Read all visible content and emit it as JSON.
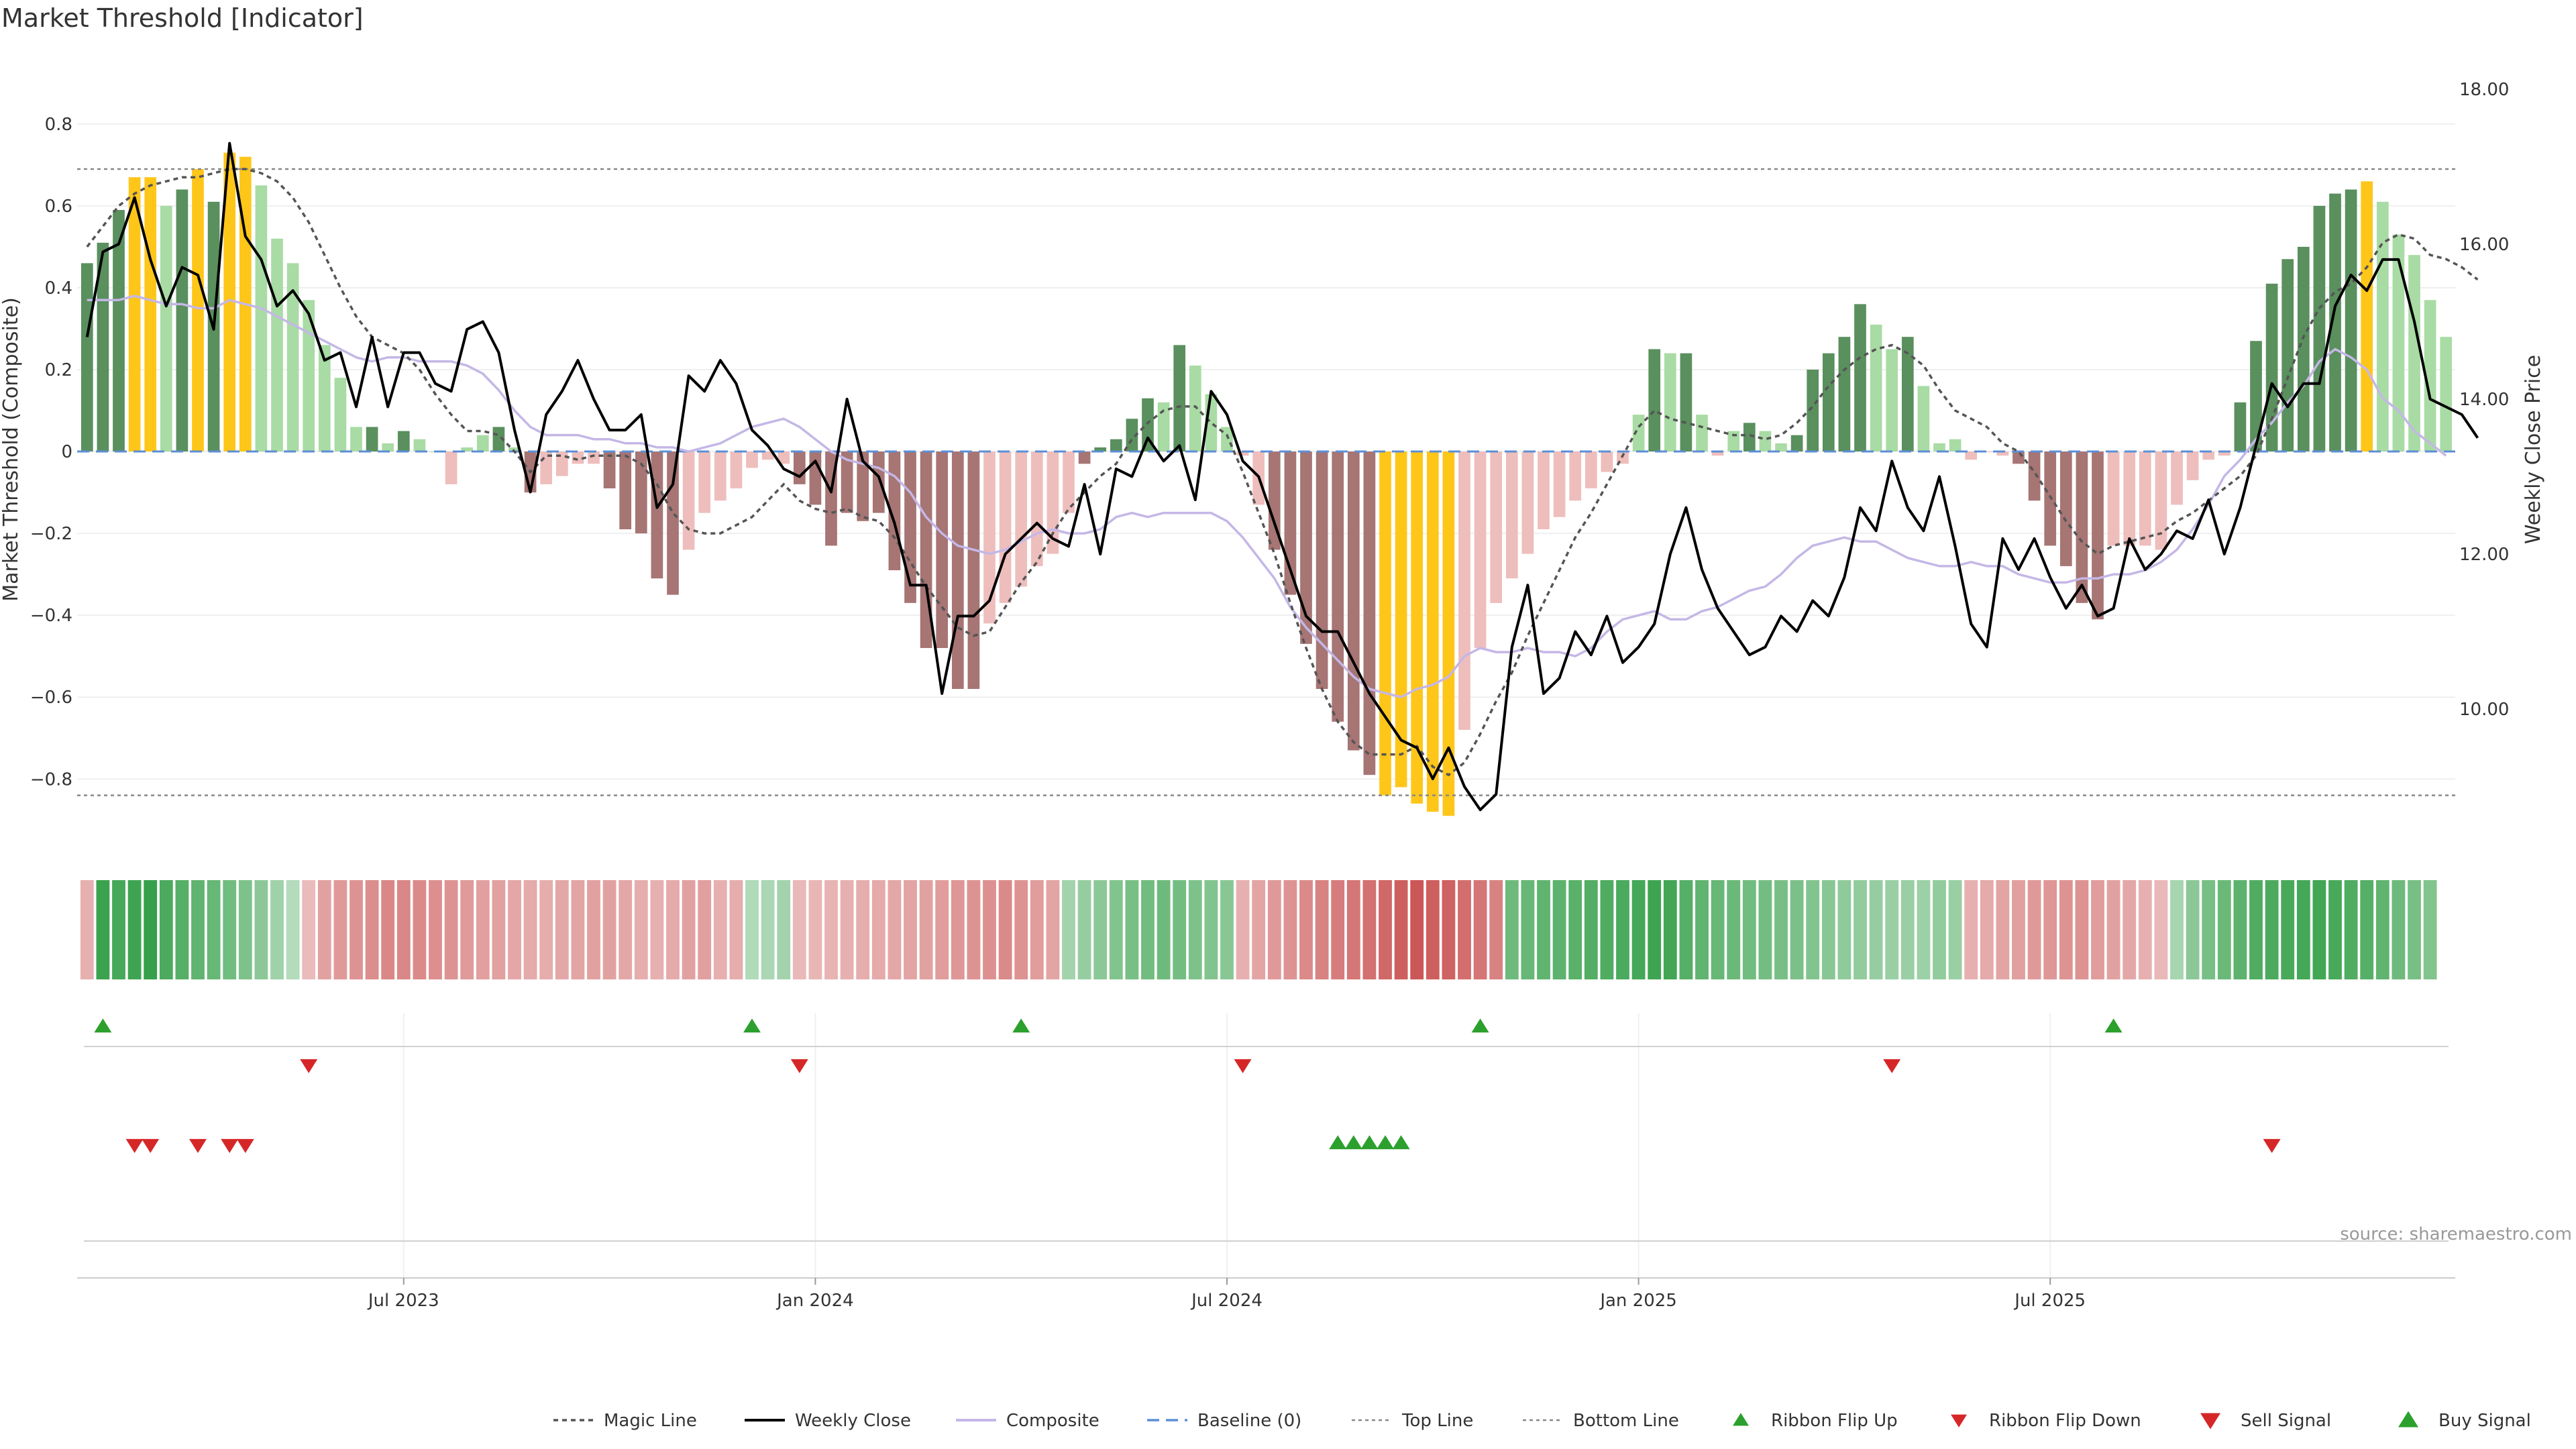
{
  "title": "Market Threshold [Indicator]",
  "source": "source: sharemaestro.com",
  "chart_data": {
    "type": "bar",
    "y_left": {
      "label": "Market Threshold (Composite)",
      "range": [
        -0.97,
        0.98
      ],
      "ticks": [
        0.8,
        0.6,
        0.4,
        0.2,
        0,
        -0.2,
        -0.4,
        -0.6,
        -0.8
      ]
    },
    "y_right": {
      "label": "Weekly Close Price",
      "range": [
        8.2,
        18.5
      ],
      "ticks": [
        "18.00",
        "16.00",
        "14.00",
        "12.00",
        "10.00"
      ]
    },
    "x_labels": [
      "Jul 2023",
      "Jan 2024",
      "Jul 2024",
      "Jan 2025",
      "Jul 2025"
    ],
    "x_label_week_index": [
      20,
      46,
      72,
      98,
      124
    ],
    "top_line": 0.69,
    "bottom_line": -0.84,
    "grid": true,
    "colors": {
      "strong_up": "#5a8f5e",
      "weak_up": "#a9dba4",
      "strong_down": "#a67574",
      "weak_down": "#eebebc",
      "extreme": "#ffc61a",
      "magic": "#555555",
      "close": "#000000",
      "composite": "#c4b7e6",
      "baseline": "#5b8fd6",
      "threshold": "#888888",
      "signal_up": "#2ca02c",
      "signal_down": "#d62728"
    },
    "composite_bars": {
      "values": [
        0.46,
        0.51,
        0.59,
        0.67,
        0.67,
        0.6,
        0.64,
        0.69,
        0.61,
        0.73,
        0.72,
        0.65,
        0.52,
        0.46,
        0.37,
        0.26,
        0.18,
        0.06,
        0.06,
        0.02,
        0.05,
        0.03,
        0.0,
        -0.08,
        0.01,
        0.04,
        0.06,
        0.01,
        -0.1,
        -0.08,
        -0.06,
        -0.03,
        -0.03,
        -0.09,
        -0.19,
        -0.2,
        -0.31,
        -0.35,
        -0.24,
        -0.15,
        -0.12,
        -0.09,
        -0.04,
        -0.02,
        -0.03,
        -0.08,
        -0.13,
        -0.23,
        -0.15,
        -0.17,
        -0.15,
        -0.29,
        -0.37,
        -0.48,
        -0.48,
        -0.58,
        -0.58,
        -0.42,
        -0.37,
        -0.33,
        -0.28,
        -0.25,
        -0.15,
        -0.03,
        0.01,
        0.03,
        0.08,
        0.13,
        0.12,
        0.26,
        0.21,
        0.14,
        0.06,
        -0.01,
        -0.13,
        -0.24,
        -0.35,
        -0.47,
        -0.58,
        -0.66,
        -0.73,
        -0.79,
        -0.84,
        -0.82,
        -0.86,
        -0.88,
        -0.89,
        -0.68,
        -0.48,
        -0.37,
        -0.31,
        -0.25,
        -0.19,
        -0.16,
        -0.12,
        -0.09,
        -0.05,
        -0.03,
        0.09,
        0.25,
        0.24,
        0.24,
        0.09,
        -0.01,
        0.05,
        0.07,
        0.05,
        0.02,
        0.04,
        0.2,
        0.24,
        0.28,
        0.36,
        0.31,
        0.25,
        0.28,
        0.16,
        0.02,
        0.03,
        -0.02,
        0.0,
        -0.01,
        -0.03,
        -0.12,
        -0.23,
        -0.28,
        -0.37,
        -0.41,
        -0.23,
        -0.23,
        -0.23,
        -0.24,
        -0.13,
        -0.07,
        -0.02,
        -0.01,
        0.12,
        0.27,
        0.41,
        0.47,
        0.5,
        0.6,
        0.63,
        0.64,
        0.66,
        0.61,
        0.53,
        0.48,
        0.37,
        0.28
      ],
      "categories": [
        "strong_up",
        "strong_up",
        "strong_up",
        "extreme",
        "extreme",
        "weak_up",
        "strong_up",
        "extreme",
        "strong_up",
        "extreme",
        "extreme",
        "weak_up",
        "weak_up",
        "weak_up",
        "weak_up",
        "weak_up",
        "weak_up",
        "weak_up",
        "strong_up",
        "weak_up",
        "strong_up",
        "weak_up",
        "weak_up",
        "weak_down",
        "weak_up",
        "weak_up",
        "strong_up",
        "weak_up",
        "strong_down",
        "weak_down",
        "weak_down",
        "weak_down",
        "weak_down",
        "strong_down",
        "strong_down",
        "strong_down",
        "strong_down",
        "strong_down",
        "weak_down",
        "weak_down",
        "weak_down",
        "weak_down",
        "weak_down",
        "weak_down",
        "weak_down",
        "strong_down",
        "strong_down",
        "strong_down",
        "strong_down",
        "strong_down",
        "strong_down",
        "strong_down",
        "strong_down",
        "strong_down",
        "strong_down",
        "strong_down",
        "strong_down",
        "weak_down",
        "weak_down",
        "weak_down",
        "weak_down",
        "weak_down",
        "weak_down",
        "strong_down",
        "strong_up",
        "strong_up",
        "strong_up",
        "strong_up",
        "weak_up",
        "strong_up",
        "weak_up",
        "weak_up",
        "weak_up",
        "weak_down",
        "weak_down",
        "strong_down",
        "strong_down",
        "strong_down",
        "strong_down",
        "strong_down",
        "strong_down",
        "strong_down",
        "extreme",
        "extreme",
        "extreme",
        "extreme",
        "extreme",
        "weak_down",
        "weak_down",
        "weak_down",
        "weak_down",
        "weak_down",
        "weak_down",
        "weak_down",
        "weak_down",
        "weak_down",
        "weak_down",
        "weak_down",
        "weak_up",
        "strong_up",
        "weak_up",
        "strong_up",
        "weak_up",
        "weak_down",
        "weak_up",
        "strong_up",
        "weak_up",
        "weak_up",
        "strong_up",
        "strong_up",
        "strong_up",
        "strong_up",
        "strong_up",
        "weak_up",
        "weak_up",
        "strong_up",
        "weak_up",
        "weak_up",
        "weak_up",
        "weak_down",
        "weak_down",
        "weak_down",
        "strong_down",
        "strong_down",
        "strong_down",
        "strong_down",
        "strong_down",
        "strong_down",
        "weak_down",
        "weak_down",
        "weak_down",
        "weak_down",
        "weak_down",
        "weak_down",
        "weak_down",
        "weak_down",
        "strong_up",
        "strong_up",
        "strong_up",
        "strong_up",
        "strong_up",
        "strong_up",
        "strong_up",
        "strong_up",
        "extreme",
        "weak_up",
        "weak_up",
        "weak_up",
        "weak_up",
        "weak_up"
      ]
    },
    "weekly_close": [
      14.8,
      15.9,
      16.0,
      16.6,
      15.8,
      15.2,
      15.7,
      15.6,
      14.9,
      17.3,
      16.1,
      15.8,
      15.2,
      15.4,
      15.1,
      14.5,
      14.6,
      13.9,
      14.8,
      13.9,
      14.6,
      14.6,
      14.2,
      14.1,
      14.9,
      15.0,
      14.6,
      13.6,
      12.8,
      13.8,
      14.1,
      14.5,
      14.0,
      13.6,
      13.6,
      13.8,
      12.6,
      12.9,
      14.3,
      14.1,
      14.5,
      14.2,
      13.6,
      13.4,
      13.1,
      13.0,
      13.2,
      12.8,
      14.0,
      13.2,
      13.0,
      12.4,
      11.6,
      11.6,
      10.2,
      11.2,
      11.2,
      11.4,
      12.0,
      12.2,
      12.4,
      12.2,
      12.1,
      12.9,
      12.0,
      13.1,
      13.0,
      13.5,
      13.2,
      13.4,
      12.7,
      14.1,
      13.8,
      13.2,
      13.0,
      12.4,
      11.8,
      11.2,
      11.0,
      11.0,
      10.6,
      10.2,
      9.9,
      9.6,
      9.5,
      9.1,
      9.5,
      9.0,
      8.7,
      8.9,
      10.8,
      11.6,
      10.2,
      10.4,
      11.0,
      10.7,
      11.2,
      10.6,
      10.8,
      11.1,
      12.0,
      12.6,
      11.8,
      11.3,
      11.0,
      10.7,
      10.8,
      11.2,
      11.0,
      11.4,
      11.2,
      11.7,
      12.6,
      12.3,
      13.2,
      12.6,
      12.3,
      13.0,
      12.1,
      11.1,
      10.8,
      12.2,
      11.8,
      12.2,
      11.7,
      11.3,
      11.6,
      11.2,
      11.3,
      12.2,
      11.8,
      12.0,
      12.3,
      12.2,
      12.7,
      12.0,
      12.6,
      13.4,
      14.2,
      13.9,
      14.2,
      14.2,
      15.2,
      15.6,
      15.4,
      15.8,
      15.8,
      15.0,
      14.0,
      13.9,
      13.8,
      13.5
    ],
    "magic_line": [
      0.5,
      0.55,
      0.6,
      0.63,
      0.65,
      0.66,
      0.67,
      0.67,
      0.68,
      0.69,
      0.69,
      0.68,
      0.66,
      0.62,
      0.56,
      0.48,
      0.4,
      0.33,
      0.28,
      0.26,
      0.24,
      0.2,
      0.14,
      0.09,
      0.05,
      0.05,
      0.04,
      0.0,
      -0.05,
      -0.01,
      -0.01,
      -0.02,
      -0.01,
      -0.01,
      -0.01,
      -0.03,
      -0.08,
      -0.15,
      -0.19,
      -0.2,
      -0.2,
      -0.18,
      -0.16,
      -0.12,
      -0.08,
      -0.12,
      -0.14,
      -0.15,
      -0.14,
      -0.16,
      -0.17,
      -0.21,
      -0.27,
      -0.33,
      -0.38,
      -0.43,
      -0.45,
      -0.44,
      -0.38,
      -0.32,
      -0.27,
      -0.2,
      -0.14,
      -0.1,
      -0.06,
      -0.03,
      0.03,
      0.07,
      0.1,
      0.11,
      0.11,
      0.07,
      0.04,
      -0.05,
      -0.15,
      -0.25,
      -0.37,
      -0.48,
      -0.58,
      -0.66,
      -0.71,
      -0.74,
      -0.74,
      -0.74,
      -0.72,
      -0.77,
      -0.79,
      -0.76,
      -0.69,
      -0.61,
      -0.54,
      -0.45,
      -0.37,
      -0.29,
      -0.21,
      -0.15,
      -0.08,
      -0.01,
      0.06,
      0.1,
      0.08,
      0.07,
      0.06,
      0.05,
      0.04,
      0.04,
      0.03,
      0.04,
      0.07,
      0.11,
      0.16,
      0.2,
      0.23,
      0.25,
      0.26,
      0.24,
      0.21,
      0.15,
      0.1,
      0.08,
      0.06,
      0.02,
      0.0,
      -0.05,
      -0.11,
      -0.17,
      -0.22,
      -0.25,
      -0.23,
      -0.22,
      -0.21,
      -0.2,
      -0.17,
      -0.15,
      -0.12,
      -0.09,
      -0.06,
      -0.01,
      0.08,
      0.18,
      0.28,
      0.35,
      0.39,
      0.41,
      0.45,
      0.51,
      0.53,
      0.52,
      0.48,
      0.47,
      0.45,
      0.42
    ],
    "composite_line": [
      0.37,
      0.37,
      0.37,
      0.38,
      0.37,
      0.36,
      0.36,
      0.35,
      0.35,
      0.37,
      0.36,
      0.35,
      0.33,
      0.31,
      0.29,
      0.27,
      0.25,
      0.23,
      0.22,
      0.23,
      0.23,
      0.22,
      0.22,
      0.22,
      0.21,
      0.19,
      0.15,
      0.1,
      0.06,
      0.04,
      0.04,
      0.04,
      0.03,
      0.03,
      0.02,
      0.02,
      0.01,
      0.01,
      0.0,
      0.01,
      0.02,
      0.04,
      0.06,
      0.07,
      0.08,
      0.06,
      0.03,
      0.0,
      -0.02,
      -0.03,
      -0.04,
      -0.06,
      -0.1,
      -0.16,
      -0.2,
      -0.23,
      -0.24,
      -0.25,
      -0.24,
      -0.22,
      -0.2,
      -0.19,
      -0.2,
      -0.2,
      -0.19,
      -0.16,
      -0.15,
      -0.16,
      -0.15,
      -0.15,
      -0.15,
      -0.15,
      -0.17,
      -0.21,
      -0.26,
      -0.31,
      -0.38,
      -0.43,
      -0.47,
      -0.51,
      -0.55,
      -0.58,
      -0.59,
      -0.6,
      -0.58,
      -0.57,
      -0.55,
      -0.5,
      -0.48,
      -0.49,
      -0.49,
      -0.48,
      -0.49,
      -0.49,
      -0.5,
      -0.48,
      -0.44,
      -0.41,
      -0.4,
      -0.39,
      -0.41,
      -0.41,
      -0.39,
      -0.38,
      -0.36,
      -0.34,
      -0.33,
      -0.3,
      -0.26,
      -0.23,
      -0.22,
      -0.21,
      -0.22,
      -0.22,
      -0.24,
      -0.26,
      -0.27,
      -0.28,
      -0.28,
      -0.27,
      -0.28,
      -0.28,
      -0.3,
      -0.31,
      -0.32,
      -0.32,
      -0.31,
      -0.31,
      -0.3,
      -0.3,
      -0.29,
      -0.27,
      -0.24,
      -0.19,
      -0.13,
      -0.06,
      -0.02,
      0.03,
      0.07,
      0.12,
      0.16,
      0.22,
      0.25,
      0.23,
      0.2,
      0.13,
      0.1,
      0.05,
      0.02,
      -0.01
    ],
    "ribbon": {
      "values": [
        -0.3,
        0.92,
        0.85,
        0.9,
        0.95,
        0.82,
        0.76,
        0.7,
        0.66,
        0.6,
        0.52,
        0.44,
        0.32,
        0.2,
        -0.22,
        -0.4,
        -0.46,
        -0.5,
        -0.54,
        -0.58,
        -0.58,
        -0.56,
        -0.53,
        -0.5,
        -0.45,
        -0.42,
        -0.4,
        -0.37,
        -0.34,
        -0.32,
        -0.36,
        -0.38,
        -0.4,
        -0.4,
        -0.36,
        -0.32,
        -0.3,
        -0.34,
        -0.4,
        -0.42,
        -0.3,
        -0.32,
        0.22,
        0.25,
        0.3,
        -0.24,
        -0.26,
        -0.28,
        -0.3,
        -0.32,
        -0.34,
        -0.36,
        -0.38,
        -0.4,
        -0.44,
        -0.48,
        -0.5,
        -0.52,
        -0.56,
        -0.5,
        -0.44,
        -0.38,
        0.3,
        0.38,
        0.44,
        0.5,
        0.56,
        0.6,
        0.62,
        0.58,
        0.52,
        0.5,
        0.46,
        -0.3,
        -0.38,
        -0.46,
        -0.5,
        -0.56,
        -0.62,
        -0.66,
        -0.7,
        -0.74,
        -0.8,
        -0.86,
        -0.92,
        -0.86,
        -0.84,
        -0.76,
        -0.7,
        -0.62,
        0.62,
        0.66,
        0.7,
        0.72,
        0.74,
        0.78,
        0.8,
        0.82,
        0.86,
        0.9,
        0.88,
        0.76,
        0.7,
        0.66,
        0.64,
        0.6,
        0.58,
        0.56,
        0.54,
        0.5,
        0.46,
        0.42,
        0.4,
        0.38,
        0.36,
        0.36,
        0.34,
        0.4,
        0.36,
        -0.3,
        -0.34,
        -0.38,
        -0.42,
        -0.46,
        -0.48,
        -0.5,
        -0.5,
        -0.44,
        -0.4,
        -0.36,
        -0.3,
        -0.24,
        0.28,
        0.44,
        0.56,
        0.64,
        0.72,
        0.8,
        0.82,
        0.84,
        0.86,
        0.88,
        0.84,
        0.8,
        0.76,
        0.7,
        0.62,
        0.56,
        0.5
      ],
      "color_up": "#2e9c43",
      "color_down": "#c84b4b"
    },
    "signals": {
      "ribbon_flip_up": [
        1,
        42,
        59,
        88,
        128
      ],
      "ribbon_flip_down": [
        14,
        45,
        73,
        114
      ],
      "sell_signal": [
        3,
        4,
        7,
        9,
        10,
        138
      ],
      "buy_signal": [
        79,
        80,
        81,
        82,
        83
      ]
    },
    "legend": [
      "Magic Line",
      "Weekly Close",
      "Composite",
      "Baseline (0)",
      "Top Line",
      "Bottom Line",
      "Ribbon Flip Up",
      "Ribbon Flip Down",
      "Sell Signal",
      "Buy Signal"
    ]
  }
}
